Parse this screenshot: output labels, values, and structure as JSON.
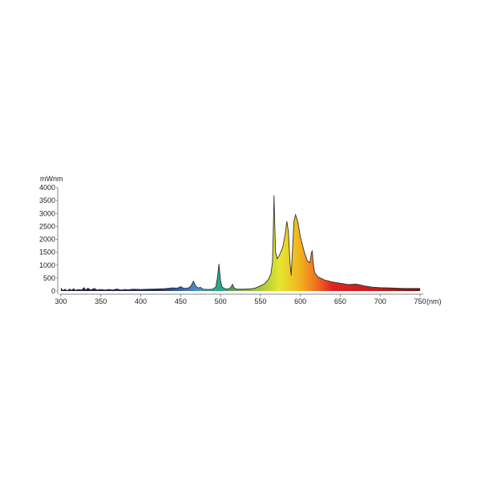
{
  "chart_data": {
    "type": "area",
    "title": "",
    "ylabel": "mWnm",
    "xlabel": "(nm)",
    "xlim": [
      300,
      750
    ],
    "ylim": [
      0,
      4000
    ],
    "x_ticks": [
      300,
      350,
      400,
      450,
      500,
      550,
      600,
      650,
      700,
      750
    ],
    "y_ticks": [
      0,
      500,
      1000,
      1500,
      2000,
      2500,
      3000,
      3500,
      4000
    ],
    "grid": false,
    "fill": "visible-spectrum gradient by wavelength",
    "colors": {
      "outline": "#333333",
      "axis": "#888888"
    },
    "spectrum_colors": [
      [
        300,
        "#1c1c3c"
      ],
      [
        420,
        "#22285a"
      ],
      [
        450,
        "#3a64a6"
      ],
      [
        470,
        "#4a8ec8"
      ],
      [
        498,
        "#26a88c"
      ],
      [
        515,
        "#5e9c4c"
      ],
      [
        550,
        "#a6c83c"
      ],
      [
        575,
        "#e6e62e"
      ],
      [
        600,
        "#f2b020"
      ],
      [
        620,
        "#f07020"
      ],
      [
        640,
        "#e02424"
      ],
      [
        700,
        "#c01a1a"
      ],
      [
        750,
        "#7a1010"
      ]
    ],
    "points": [
      [
        300,
        120
      ],
      [
        302,
        20
      ],
      [
        305,
        70
      ],
      [
        308,
        10
      ],
      [
        311,
        80
      ],
      [
        313,
        20
      ],
      [
        316,
        90
      ],
      [
        318,
        30
      ],
      [
        322,
        60
      ],
      [
        326,
        40
      ],
      [
        329,
        130
      ],
      [
        331,
        40
      ],
      [
        334,
        110
      ],
      [
        337,
        40
      ],
      [
        342,
        100
      ],
      [
        345,
        40
      ],
      [
        350,
        60
      ],
      [
        355,
        40
      ],
      [
        360,
        60
      ],
      [
        365,
        40
      ],
      [
        370,
        80
      ],
      [
        375,
        40
      ],
      [
        380,
        60
      ],
      [
        385,
        50
      ],
      [
        390,
        70
      ],
      [
        400,
        60
      ],
      [
        410,
        70
      ],
      [
        420,
        80
      ],
      [
        430,
        90
      ],
      [
        440,
        120
      ],
      [
        446,
        110
      ],
      [
        450,
        170
      ],
      [
        454,
        100
      ],
      [
        460,
        120
      ],
      [
        463,
        200
      ],
      [
        466,
        380
      ],
      [
        469,
        180
      ],
      [
        472,
        120
      ],
      [
        475,
        140
      ],
      [
        478,
        70
      ],
      [
        485,
        60
      ],
      [
        490,
        70
      ],
      [
        494,
        150
      ],
      [
        496,
        500
      ],
      [
        498,
        1050
      ],
      [
        500,
        400
      ],
      [
        502,
        150
      ],
      [
        506,
        80
      ],
      [
        511,
        90
      ],
      [
        513,
        150
      ],
      [
        515,
        260
      ],
      [
        517,
        120
      ],
      [
        520,
        70
      ],
      [
        530,
        70
      ],
      [
        540,
        90
      ],
      [
        545,
        130
      ],
      [
        550,
        200
      ],
      [
        555,
        280
      ],
      [
        560,
        450
      ],
      [
        563,
        650
      ],
      [
        565,
        1100
      ],
      [
        566,
        2200
      ],
      [
        567,
        3700
      ],
      [
        568,
        2500
      ],
      [
        569,
        1500
      ],
      [
        571,
        1250
      ],
      [
        574,
        1400
      ],
      [
        578,
        1700
      ],
      [
        581,
        2200
      ],
      [
        583,
        2700
      ],
      [
        585,
        2300
      ],
      [
        587,
        1100
      ],
      [
        588.5,
        600
      ],
      [
        590,
        1500
      ],
      [
        592,
        2700
      ],
      [
        594,
        2950
      ],
      [
        597,
        2650
      ],
      [
        600,
        2100
      ],
      [
        605,
        1500
      ],
      [
        609,
        1150
      ],
      [
        612,
        1100
      ],
      [
        614,
        1500
      ],
      [
        615,
        1550
      ],
      [
        616,
        1100
      ],
      [
        618,
        700
      ],
      [
        622,
        550
      ],
      [
        630,
        430
      ],
      [
        640,
        350
      ],
      [
        650,
        300
      ],
      [
        660,
        250
      ],
      [
        670,
        270
      ],
      [
        680,
        200
      ],
      [
        690,
        150
      ],
      [
        700,
        130
      ],
      [
        710,
        120
      ],
      [
        730,
        100
      ],
      [
        750,
        100
      ]
    ]
  }
}
